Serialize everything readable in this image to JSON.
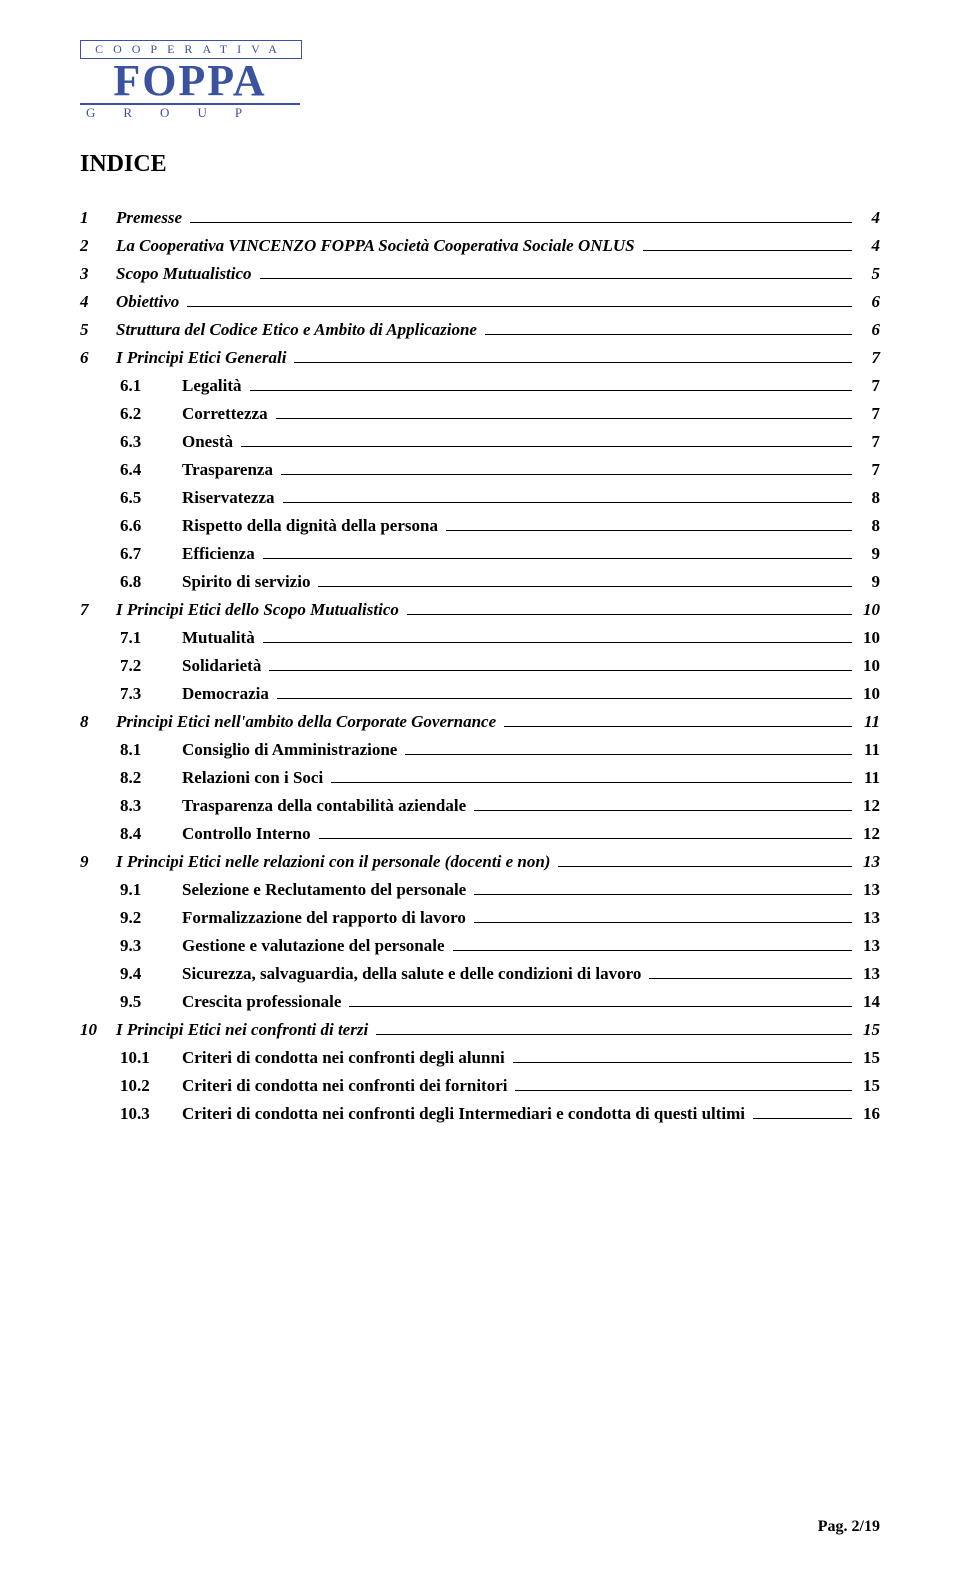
{
  "logo": {
    "top": "COOPERATIVA",
    "mid": "FOPPA",
    "bottom": "GROUP"
  },
  "title": "INDICE",
  "toc": [
    {
      "level": 1,
      "num": "1",
      "label": "Premesse",
      "page": "4"
    },
    {
      "level": 1,
      "num": "2",
      "label": "La Cooperativa VINCENZO FOPPA Società Cooperativa Sociale ONLUS",
      "page": "4"
    },
    {
      "level": 1,
      "num": "3",
      "label": "Scopo Mutualistico",
      "page": "5"
    },
    {
      "level": 1,
      "num": "4",
      "label": "Obiettivo",
      "page": "6"
    },
    {
      "level": 1,
      "num": "5",
      "label": "Struttura del Codice Etico e Ambito di Applicazione",
      "page": "6"
    },
    {
      "level": 1,
      "num": "6",
      "label": "I Principi Etici Generali",
      "page": "7"
    },
    {
      "level": 2,
      "num": "6.1",
      "label": "Legalità",
      "page": "7"
    },
    {
      "level": 2,
      "num": "6.2",
      "label": "Correttezza",
      "page": "7"
    },
    {
      "level": 2,
      "num": "6.3",
      "label": "Onestà",
      "page": "7"
    },
    {
      "level": 2,
      "num": "6.4",
      "label": "Trasparenza",
      "page": "7"
    },
    {
      "level": 2,
      "num": "6.5",
      "label": "Riservatezza",
      "page": "8"
    },
    {
      "level": 2,
      "num": "6.6",
      "label": "Rispetto della dignità della persona",
      "page": "8"
    },
    {
      "level": 2,
      "num": "6.7",
      "label": "Efficienza",
      "page": "9"
    },
    {
      "level": 2,
      "num": "6.8",
      "label": "Spirito di servizio",
      "page": "9"
    },
    {
      "level": 1,
      "num": "7",
      "label": "I Principi Etici dello Scopo Mutualistico",
      "page": "10"
    },
    {
      "level": 2,
      "num": "7.1",
      "label": "Mutualità",
      "page": "10"
    },
    {
      "level": 2,
      "num": "7.2",
      "label": "Solidarietà",
      "page": "10"
    },
    {
      "level": 2,
      "num": "7.3",
      "label": "Democrazia",
      "page": "10"
    },
    {
      "level": 1,
      "num": "8",
      "label": "Principi Etici nell'ambito della Corporate Governance",
      "page": "11"
    },
    {
      "level": 2,
      "num": "8.1",
      "label": "Consiglio di Amministrazione",
      "page": "11"
    },
    {
      "level": 2,
      "num": "8.2",
      "label": "Relazioni con i Soci",
      "page": "11"
    },
    {
      "level": 2,
      "num": "8.3",
      "label": "Trasparenza della contabilità aziendale",
      "page": "12"
    },
    {
      "level": 2,
      "num": "8.4",
      "label": "Controllo Interno",
      "page": "12"
    },
    {
      "level": 1,
      "num": "9",
      "label": "I Principi Etici nelle relazioni con il personale (docenti e non)",
      "page": "13"
    },
    {
      "level": 2,
      "num": "9.1",
      "label": "Selezione e Reclutamento del personale",
      "page": "13"
    },
    {
      "level": 2,
      "num": "9.2",
      "label": "Formalizzazione del rapporto di lavoro",
      "page": "13"
    },
    {
      "level": 2,
      "num": "9.3",
      "label": "Gestione e valutazione del personale",
      "page": "13"
    },
    {
      "level": 2,
      "num": "9.4",
      "label": "Sicurezza, salvaguardia, della salute e delle condizioni di lavoro",
      "page": "13"
    },
    {
      "level": 2,
      "num": "9.5",
      "label": "Crescita professionale",
      "page": "14"
    },
    {
      "level": 1,
      "num": "10",
      "label": "I Principi Etici nei confronti di terzi",
      "page": "15"
    },
    {
      "level": 2,
      "num": "10.1",
      "label": "Criteri di condotta nei confronti degli alunni",
      "page": "15"
    },
    {
      "level": 2,
      "num": "10.2",
      "label": "Criteri di condotta nei confronti dei fornitori",
      "page": "15"
    },
    {
      "level": 2,
      "num": "10.3",
      "label": "Criteri di condotta nei confronti degli Intermediari e condotta di questi ultimi",
      "page": "16"
    }
  ],
  "footer": "Pag. 2/19"
}
